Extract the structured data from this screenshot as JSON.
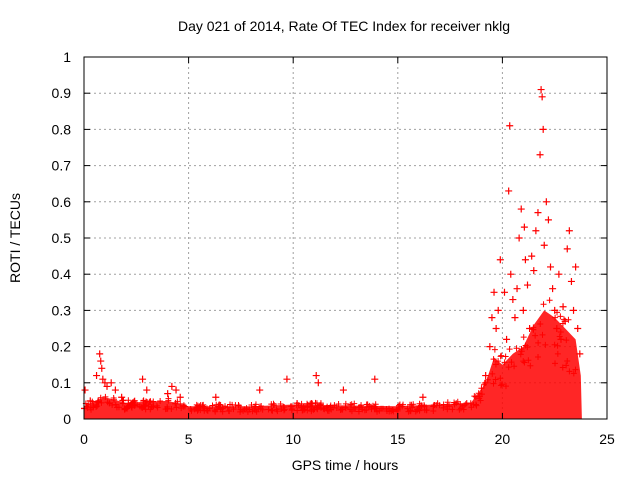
{
  "chart_data": {
    "type": "scatter",
    "title": "Day 021 of 2014, Rate Of TEC Index for receiver nklg",
    "xlabel": "GPS time / hours",
    "ylabel": "ROTI / TECUs",
    "xlim": [
      0,
      25
    ],
    "ylim": [
      0,
      1
    ],
    "x_ticks": [
      0,
      5,
      10,
      15,
      20,
      25
    ],
    "y_ticks": [
      0,
      0.1,
      0.2,
      0.3,
      0.4,
      0.5,
      0.6,
      0.7,
      0.8,
      0.9,
      1
    ],
    "x_tick_labels": [
      "0",
      "5",
      "10",
      "15",
      "20",
      "25"
    ],
    "y_tick_labels": [
      "0",
      "0.1",
      "0.2",
      "0.3",
      "0.4",
      "0.5",
      "0.6",
      "0.7",
      "0.8",
      "0.9",
      "1"
    ],
    "grid": true,
    "marker": "+",
    "series": [
      {
        "name": "ROTI",
        "color": "#ff0000",
        "points": [
          [
            0.05,
            0.08
          ],
          [
            0.3,
            0.05
          ],
          [
            0.6,
            0.12
          ],
          [
            0.75,
            0.18
          ],
          [
            0.8,
            0.16
          ],
          [
            0.85,
            0.14
          ],
          [
            0.9,
            0.11
          ],
          [
            1.0,
            0.1
          ],
          [
            1.1,
            0.09
          ],
          [
            1.3,
            0.1
          ],
          [
            1.5,
            0.08
          ],
          [
            1.8,
            0.06
          ],
          [
            2.8,
            0.11
          ],
          [
            3.0,
            0.08
          ],
          [
            4.0,
            0.07
          ],
          [
            4.2,
            0.09
          ],
          [
            4.4,
            0.08
          ],
          [
            4.6,
            0.06
          ],
          [
            6.3,
            0.06
          ],
          [
            8.4,
            0.08
          ],
          [
            9.7,
            0.11
          ],
          [
            11.1,
            0.12
          ],
          [
            11.2,
            0.1
          ],
          [
            12.4,
            0.08
          ],
          [
            13.9,
            0.11
          ],
          [
            16.2,
            0.06
          ],
          [
            19.2,
            0.12
          ],
          [
            19.4,
            0.2
          ],
          [
            19.5,
            0.28
          ],
          [
            19.6,
            0.35
          ],
          [
            19.7,
            0.25
          ],
          [
            19.8,
            0.3
          ],
          [
            19.9,
            0.44
          ],
          [
            20.1,
            0.35
          ],
          [
            20.2,
            0.22
          ],
          [
            20.3,
            0.63
          ],
          [
            20.35,
            0.81
          ],
          [
            20.4,
            0.4
          ],
          [
            20.5,
            0.33
          ],
          [
            20.6,
            0.28
          ],
          [
            20.7,
            0.36
          ],
          [
            20.8,
            0.5
          ],
          [
            20.9,
            0.58
          ],
          [
            21.0,
            0.3
          ],
          [
            21.05,
            0.53
          ],
          [
            21.1,
            0.44
          ],
          [
            21.2,
            0.37
          ],
          [
            21.3,
            0.25
          ],
          [
            21.4,
            0.45
          ],
          [
            21.5,
            0.41
          ],
          [
            21.6,
            0.52
          ],
          [
            21.7,
            0.57
          ],
          [
            21.8,
            0.73
          ],
          [
            21.85,
            0.91
          ],
          [
            21.9,
            0.89
          ],
          [
            21.95,
            0.8
          ],
          [
            22.0,
            0.48
          ],
          [
            22.1,
            0.6
          ],
          [
            22.2,
            0.55
          ],
          [
            22.3,
            0.42
          ],
          [
            22.4,
            0.36
          ],
          [
            22.5,
            0.3
          ],
          [
            22.6,
            0.25
          ],
          [
            22.7,
            0.4
          ],
          [
            22.8,
            0.22
          ],
          [
            22.9,
            0.31
          ],
          [
            23.0,
            0.27
          ],
          [
            23.1,
            0.47
          ],
          [
            23.2,
            0.52
          ],
          [
            23.3,
            0.38
          ],
          [
            23.4,
            0.3
          ],
          [
            23.5,
            0.42
          ],
          [
            23.6,
            0.25
          ],
          [
            23.7,
            0.18
          ]
        ]
      }
    ]
  }
}
